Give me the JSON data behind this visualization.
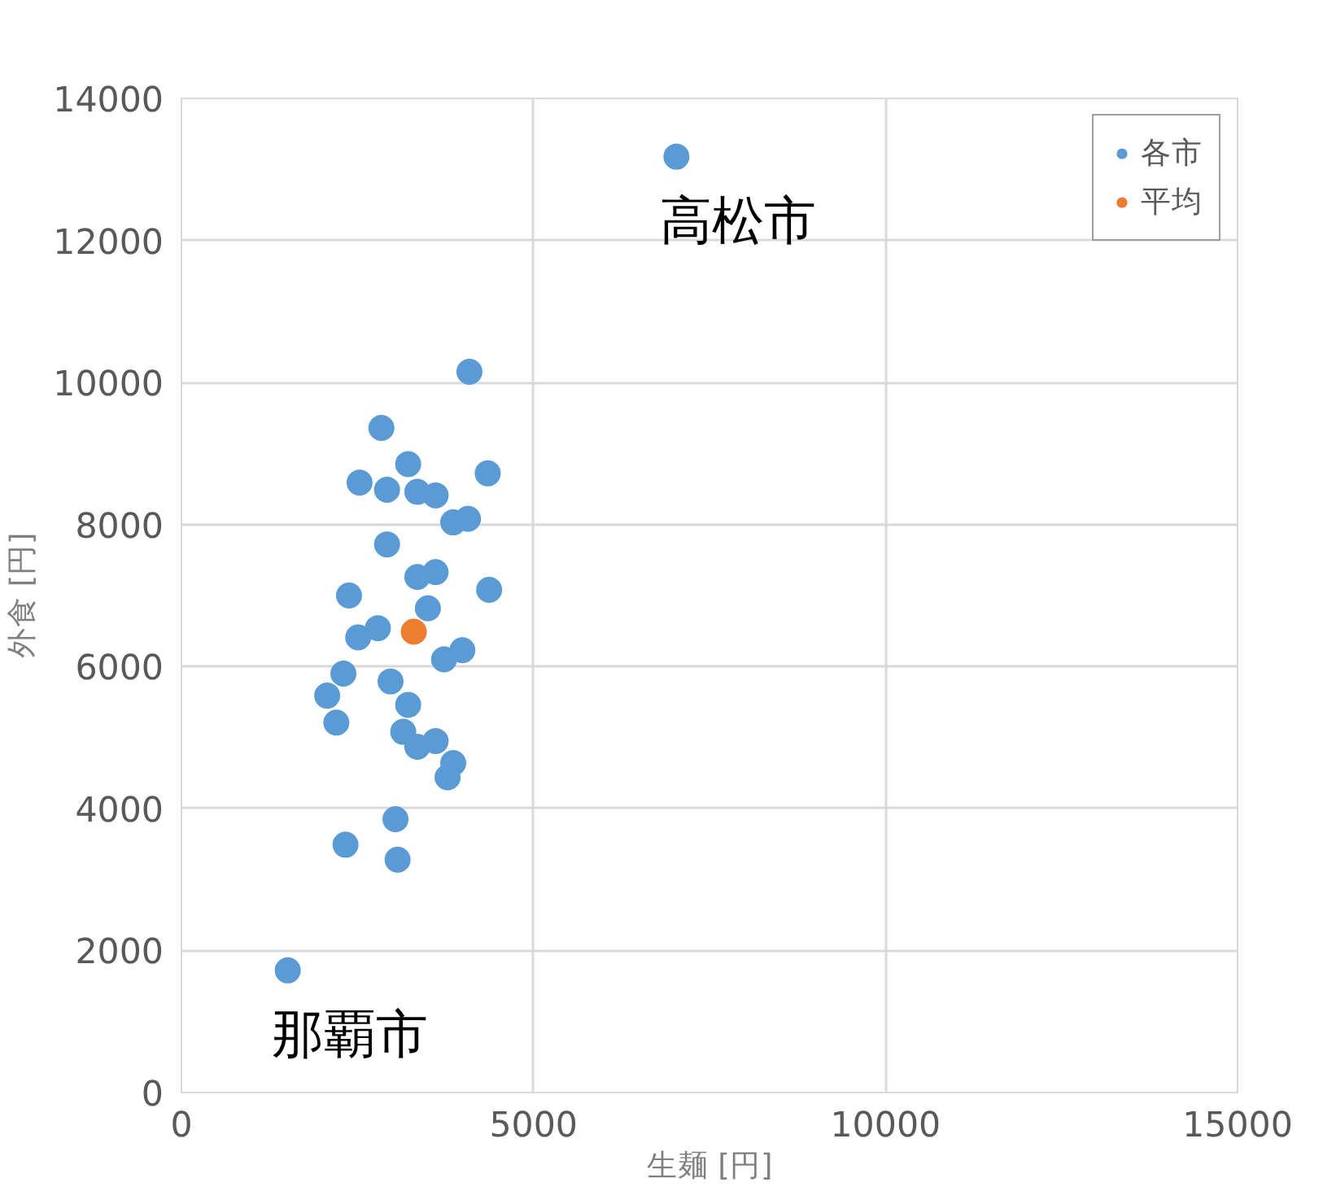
{
  "chart_data": {
    "type": "scatter",
    "xlabel": "生麺 [円]",
    "ylabel": "外食 [円]",
    "xlim": [
      0,
      15000
    ],
    "xticks": [
      0,
      5000,
      10000,
      15000
    ],
    "ylim": [
      0,
      14000
    ],
    "yticks": [
      0,
      2000,
      4000,
      6000,
      8000,
      10000,
      12000,
      14000
    ],
    "grid": true,
    "legend": "top right",
    "marker": "circle",
    "annotations": [
      {
        "text": "高松市",
        "x": 7030,
        "y": 13180
      },
      {
        "text": "那覇市",
        "x": 1510,
        "y": 1720
      }
    ],
    "series": [
      {
        "name": "各市",
        "color": "#5b9bd5",
        "x": [
          7030,
          1510,
          4090,
          2840,
          3220,
          2530,
          2920,
          3350,
          3610,
          4350,
          3860,
          4070,
          2920,
          3350,
          3610,
          4370,
          2380,
          3500,
          2790,
          2510,
          3990,
          3730,
          2300,
          2070,
          2200,
          2970,
          3220,
          3150,
          3350,
          3610,
          3860,
          3780,
          3040,
          2330,
          3070
        ],
        "values": [
          13180,
          1720,
          10150,
          9360,
          8850,
          8590,
          8490,
          8460,
          8410,
          8720,
          8030,
          8080,
          7720,
          7260,
          7330,
          7080,
          7000,
          6820,
          6540,
          6410,
          6230,
          6100,
          5900,
          5590,
          5210,
          5790,
          5460,
          5080,
          4870,
          4950,
          4640,
          4440,
          3850,
          3490,
          3280
        ]
      },
      {
        "name": "平均",
        "color": "#ed7d31",
        "x": [
          3300
        ],
        "values": [
          6490
        ]
      }
    ]
  }
}
